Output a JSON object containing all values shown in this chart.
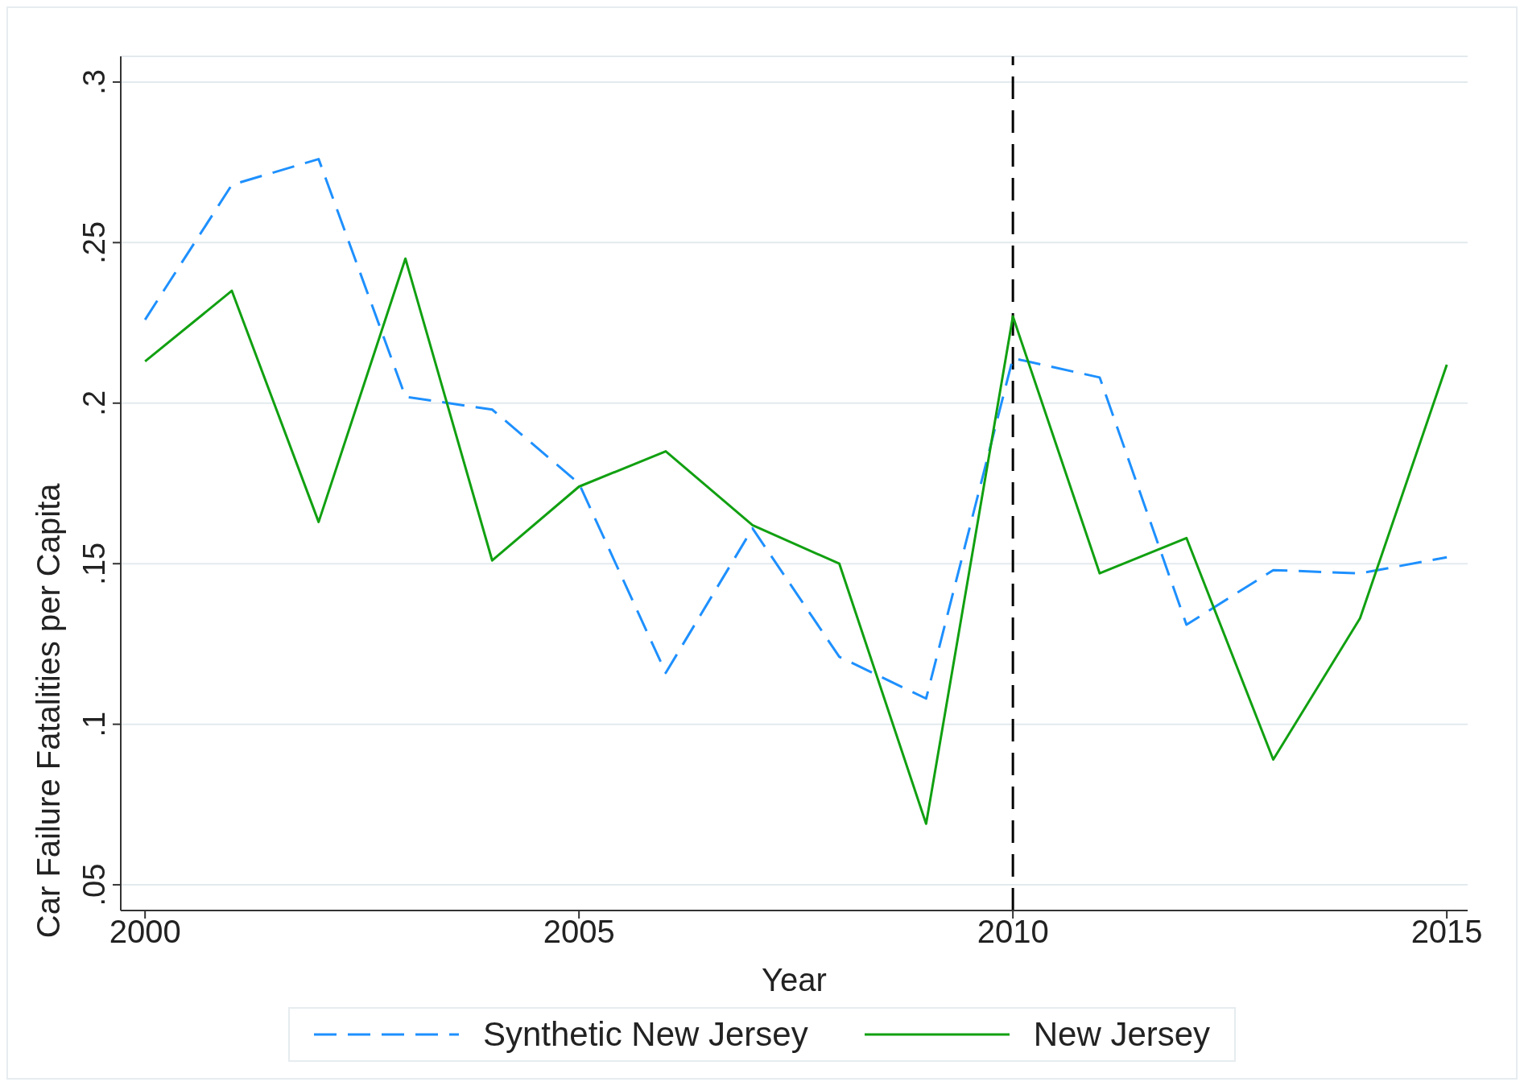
{
  "chart_data": {
    "type": "line",
    "xlabel": "Year",
    "ylabel": "Car Failure Fatalities per Capita",
    "x": [
      2000,
      2001,
      2002,
      2003,
      2004,
      2005,
      2006,
      2007,
      2008,
      2009,
      2010,
      2011,
      2012,
      2013,
      2014,
      2015
    ],
    "series": [
      {
        "name": "Synthetic New Jersey",
        "color": "#1e90ff",
        "line_style": "dashed",
        "values": [
          0.226,
          0.268,
          0.276,
          0.202,
          0.198,
          0.175,
          0.116,
          0.161,
          0.121,
          0.108,
          0.214,
          0.208,
          0.131,
          0.148,
          0.147,
          0.152
        ]
      },
      {
        "name": "New Jersey",
        "color": "#11a011",
        "line_style": "solid",
        "values": [
          0.213,
          0.235,
          0.163,
          0.245,
          0.151,
          0.174,
          0.185,
          0.162,
          0.15,
          0.069,
          0.227,
          0.147,
          0.158,
          0.089,
          0.133,
          0.212
        ]
      }
    ],
    "xlim": [
      1999.72,
      2015.24
    ],
    "xticks": [
      2000,
      2005,
      2010,
      2015
    ],
    "ylim": [
      0.042,
      0.308
    ],
    "yticks": [
      {
        "value": 0.05,
        "label": ".05"
      },
      {
        "value": 0.1,
        "label": ".1"
      },
      {
        "value": 0.15,
        "label": ".15"
      },
      {
        "value": 0.2,
        "label": ".2"
      },
      {
        "value": 0.25,
        "label": ".25"
      },
      {
        "value": 0.3,
        "label": ".3"
      }
    ],
    "grid": "y",
    "legend": "bottom",
    "marker": "none",
    "ref_lines": [
      {
        "axis": "x",
        "value": 2010,
        "color": "#000000",
        "line_style": "dashed"
      }
    ]
  }
}
